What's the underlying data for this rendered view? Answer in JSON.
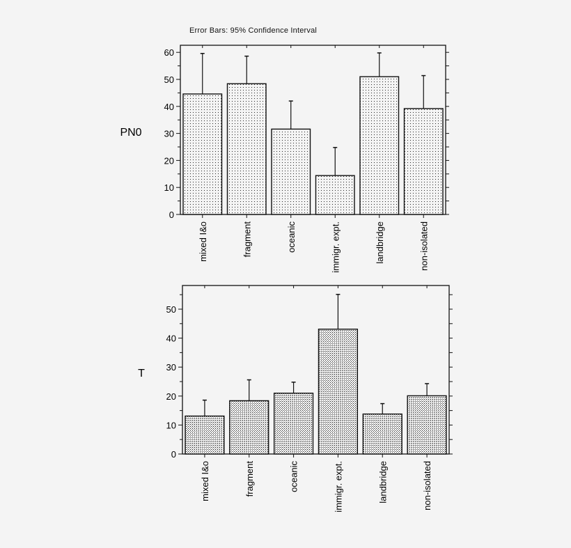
{
  "note": "Error Bars: 95% Confidence Interval",
  "chart_data": [
    {
      "type": "bar",
      "title": "",
      "subtitle": "Error Bars: 95% Confidence Interval",
      "xlabel": "",
      "ylabel": "PN0",
      "ylim": [
        0,
        62
      ],
      "yticks": [
        0,
        10,
        20,
        30,
        40,
        50,
        60
      ],
      "categories": [
        "mixed I&o",
        "fragment",
        "oceanic",
        "immigr. expt.",
        "landbridge",
        "non-isolated"
      ],
      "values": [
        44.6,
        48.4,
        31.6,
        14.4,
        51.0,
        39.2
      ],
      "error_upper": [
        59.6,
        58.6,
        42.0,
        24.8,
        59.8,
        51.4
      ],
      "grid": false,
      "legend": null
    },
    {
      "type": "bar",
      "title": "",
      "xlabel": "",
      "ylabel": "T",
      "ylim": [
        0,
        57
      ],
      "yticks": [
        0,
        10,
        20,
        30,
        40,
        50
      ],
      "categories": [
        "mixed I&o",
        "fragment",
        "oceanic",
        "immigr. expt.",
        "landbridge",
        "non-isolated"
      ],
      "values": [
        13.1,
        18.4,
        21.0,
        43.1,
        13.8,
        20.1
      ],
      "error_upper": [
        18.6,
        25.6,
        24.8,
        55.1,
        17.4,
        24.3
      ],
      "grid": false,
      "legend": null
    }
  ]
}
